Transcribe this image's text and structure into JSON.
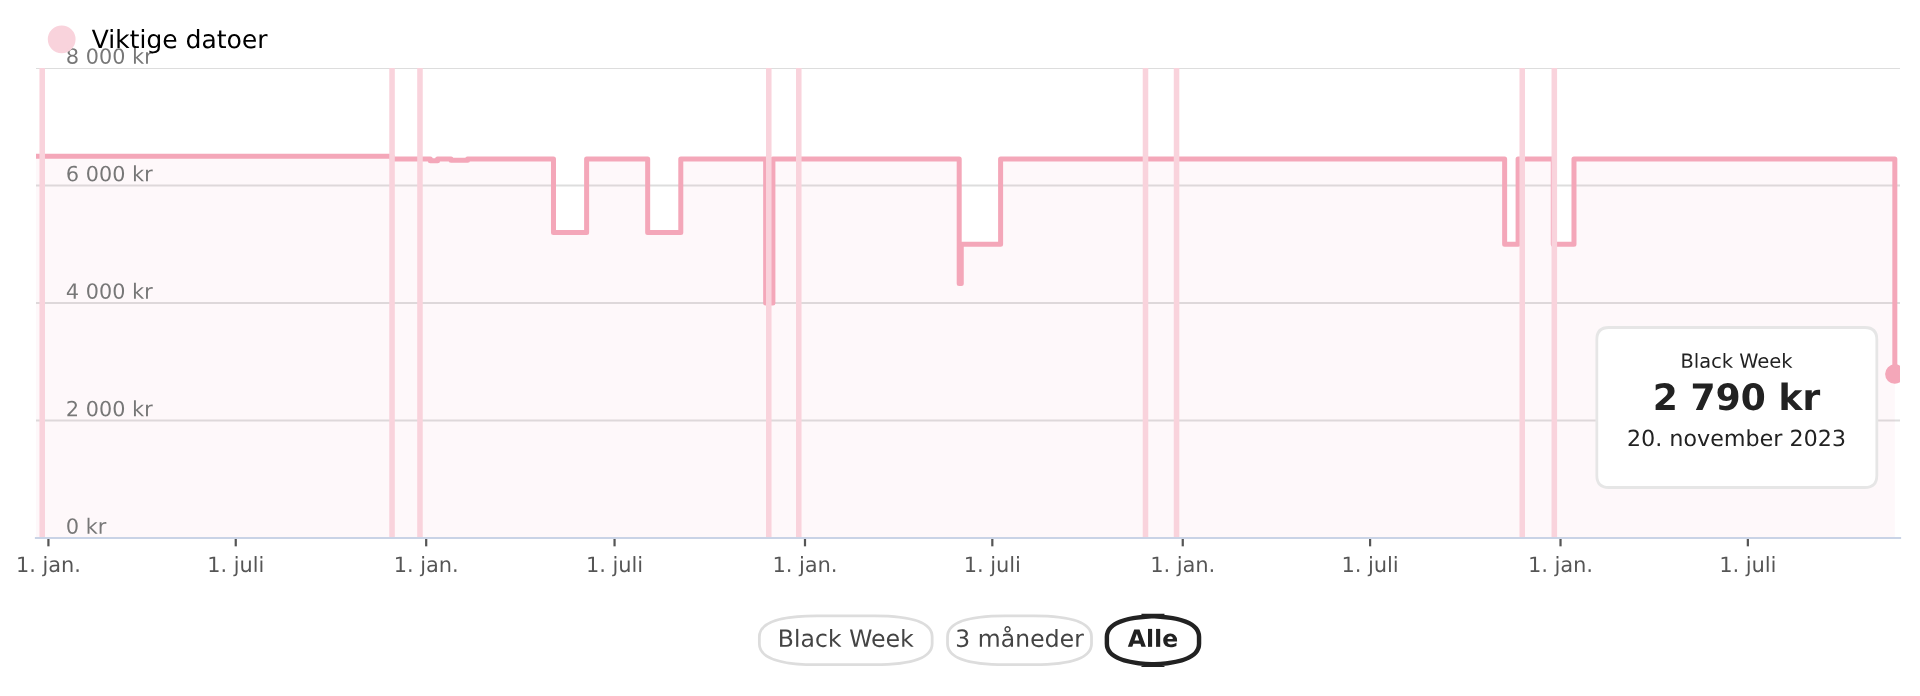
{
  "chart_data": {
    "type": "step",
    "x": [
      "2018-12-20",
      "2019-11-29",
      "2020-01-05",
      "2020-01-12",
      "2020-01-25",
      "2020-02-10",
      "2020-05-03",
      "2020-06-04",
      "2020-08-02",
      "2020-09-03",
      "2020-11-24",
      "2020-12-01",
      "2021-05-30",
      "2021-06-01",
      "2021-07-09",
      "2022-11-08",
      "2022-11-21",
      "2022-12-25",
      "2023-01-14",
      "2023-11-10",
      "2023-11-20"
    ],
    "series": [
      {
        "color": "#f4a7b9",
        "values": [
          6500,
          6450,
          6420,
          6450,
          6430,
          6450,
          5200,
          6450,
          5200,
          6450,
          4000,
          6450,
          4330,
          5000,
          6450,
          5000,
          6450,
          5000,
          6450,
          6450,
          2790
        ]
      }
    ],
    "xlim": [
      "2018-12-20",
      "2023-11-25"
    ],
    "xticks": [
      {
        "value": "2019-01-01",
        "label": "1. jan."
      },
      {
        "value": "2019-07-01",
        "label": "1. juli"
      },
      {
        "value": "2020-01-01",
        "label": "1. jan."
      },
      {
        "value": "2020-07-01",
        "label": "1. juli"
      },
      {
        "value": "2021-01-01",
        "label": "1. jan."
      },
      {
        "value": "2021-07-01",
        "label": "1. juli"
      },
      {
        "value": "2022-01-01",
        "label": "1. jan."
      },
      {
        "value": "2022-07-01",
        "label": "1. juli"
      },
      {
        "value": "2023-01-01",
        "label": "1. jan."
      },
      {
        "value": "2023-07-01",
        "label": "1. juli"
      }
    ],
    "ylim": [
      0,
      8000
    ],
    "yticks": [
      {
        "value": 0,
        "label": "0 kr"
      },
      {
        "value": 2000,
        "label": "2 000 kr"
      },
      {
        "value": 4000,
        "label": "4 000 kr"
      },
      {
        "value": 6000,
        "label": "6 000 kr"
      },
      {
        "value": 8000,
        "label": "8 000 kr"
      }
    ],
    "grid": "y",
    "legend": "top left",
    "ref_lines": [
      {
        "axis": "x",
        "value": "2018-12-26",
        "label": "Viktige datoer",
        "color": "#f9d3dc"
      },
      {
        "axis": "x",
        "value": "2019-11-29",
        "color": "#f9d3dc"
      },
      {
        "axis": "x",
        "value": "2019-12-26",
        "color": "#f9d3dc"
      },
      {
        "axis": "x",
        "value": "2020-11-27",
        "color": "#f9d3dc"
      },
      {
        "axis": "x",
        "value": "2020-12-26",
        "color": "#f9d3dc"
      },
      {
        "axis": "x",
        "value": "2021-11-26",
        "color": "#f9d3dc"
      },
      {
        "axis": "x",
        "value": "2021-12-26",
        "color": "#f9d3dc"
      },
      {
        "axis": "x",
        "value": "2022-11-25",
        "color": "#f9d3dc"
      },
      {
        "axis": "x",
        "value": "2022-12-26",
        "color": "#f9d3dc"
      }
    ],
    "annotations": [
      {
        "text": "Black Week\n2 790 kr\n20. november 2023",
        "x": "2023-11-20",
        "y": 2790
      },
      "Black Week",
      "3 måneder",
      "Alle"
    ]
  }
}
